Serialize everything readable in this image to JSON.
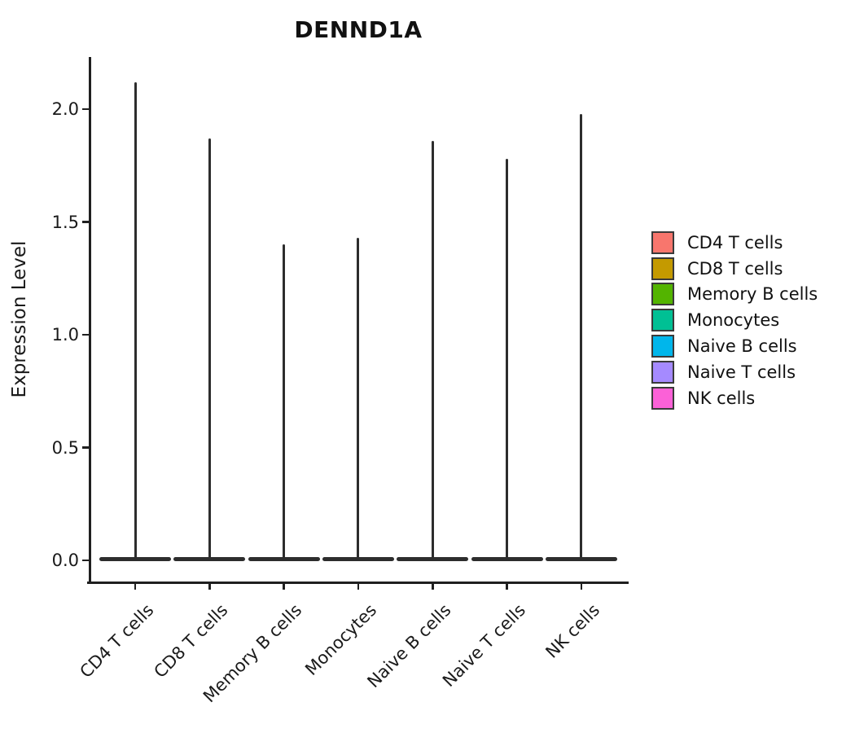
{
  "chart_data": {
    "type": "violin",
    "title": "DENND1A",
    "xlabel": "",
    "ylabel": "Expression Level",
    "categories": [
      "CD4 T cells",
      "CD8 T cells",
      "Memory B cells",
      "Monocytes",
      "Naive B cells",
      "Naive T cells",
      "NK cells"
    ],
    "series": [
      {
        "name": "CD4 T cells",
        "color": "#F8766D",
        "max_expression": 2.12,
        "min_expression": 0.0
      },
      {
        "name": "CD8 T cells",
        "color": "#C49A00",
        "max_expression": 1.87,
        "min_expression": 0.0
      },
      {
        "name": "Memory B cells",
        "color": "#53B400",
        "max_expression": 1.4,
        "min_expression": 0.0
      },
      {
        "name": "Monocytes",
        "color": "#00C094",
        "max_expression": 1.43,
        "min_expression": 0.0
      },
      {
        "name": "Naive B cells",
        "color": "#00B6EB",
        "max_expression": 1.86,
        "min_expression": 0.0
      },
      {
        "name": "Naive T cells",
        "color": "#A58AFF",
        "max_expression": 1.78,
        "min_expression": 0.0
      },
      {
        "name": "NK cells",
        "color": "#FB61D7",
        "max_expression": 1.98,
        "min_expression": 0.0
      }
    ],
    "distribution_note": "each violin is a narrow spike: density mass concentrated at 0 (wide flat base) with a thin tail up to max_expression",
    "y_ticks": {
      "values": [
        0.0,
        0.5,
        1.0,
        1.5,
        2.0
      ],
      "labels": [
        "0.0",
        "0.5",
        "1.0",
        "1.5",
        "2.0"
      ]
    },
    "ylim": [
      -0.1,
      2.23
    ],
    "grid": false,
    "legend": {
      "position": "right",
      "entries": [
        {
          "label": "CD4 T cells",
          "color": "#F8766D"
        },
        {
          "label": "CD8 T cells",
          "color": "#C49A00"
        },
        {
          "label": "Memory B cells",
          "color": "#53B400"
        },
        {
          "label": "Monocytes",
          "color": "#00C094"
        },
        {
          "label": "Naive B cells",
          "color": "#00B6EB"
        },
        {
          "label": "Naive T cells",
          "color": "#A58AFF"
        },
        {
          "label": "NK cells",
          "color": "#FB61D7"
        }
      ]
    },
    "style": {
      "axis_color": "#1f1f1f",
      "violin_color": "#2d2d2d",
      "text_color": "#1a1a1a"
    }
  }
}
